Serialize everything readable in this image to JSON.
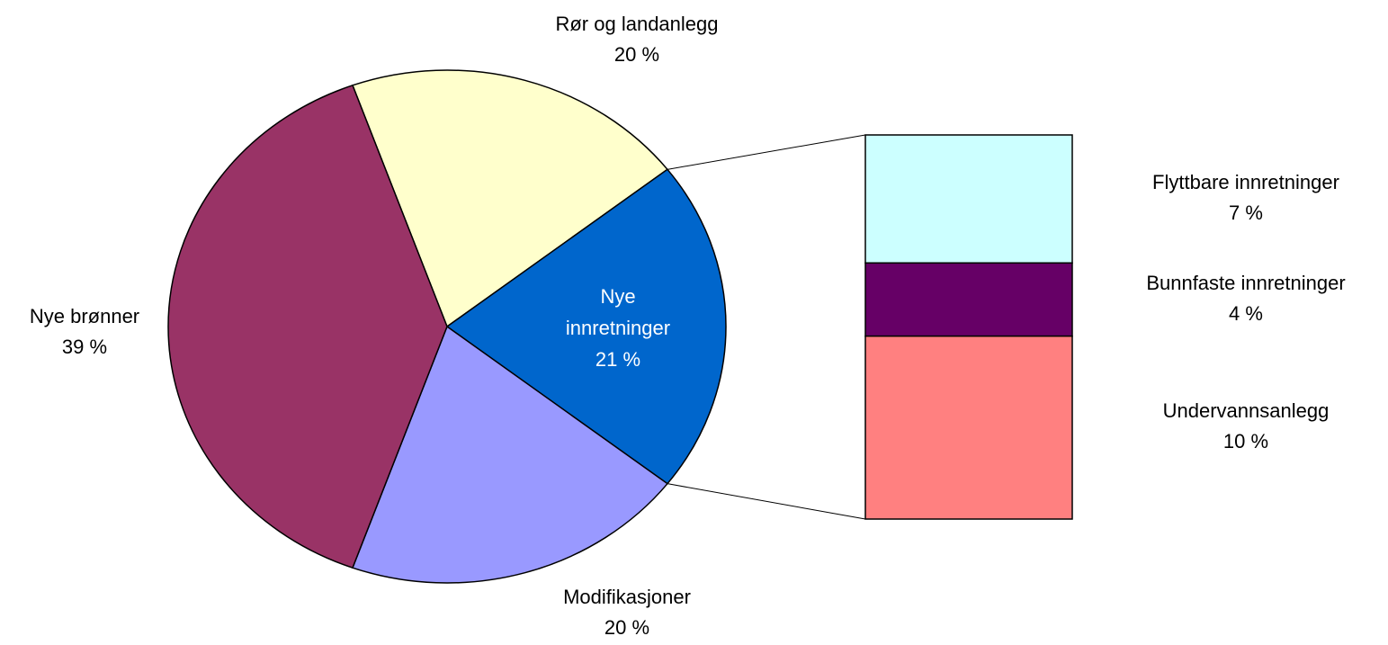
{
  "chart_data": {
    "type": "bar-of-pie",
    "pie": {
      "categories": [
        "Rør og landanlegg",
        "Nye innretninger",
        "Modifikasjoner",
        "Nye brønner"
      ],
      "values": [
        20,
        21,
        20,
        39
      ],
      "value_labels": [
        "20 %",
        "21 %",
        "20 %",
        "39 %"
      ],
      "colors": [
        "#ffffcc",
        "#0066cc",
        "#9999ff",
        "#993366"
      ]
    },
    "bar": {
      "categories": [
        "Flyttbare innretninger",
        "Bunnfaste innretninger",
        "Undervannsanlegg"
      ],
      "values": [
        7,
        4,
        10
      ],
      "value_labels": [
        "7 %",
        "4 %",
        "10 %"
      ],
      "colors": [
        "#ccffff",
        "#660066",
        "#ff8080"
      ]
    }
  }
}
